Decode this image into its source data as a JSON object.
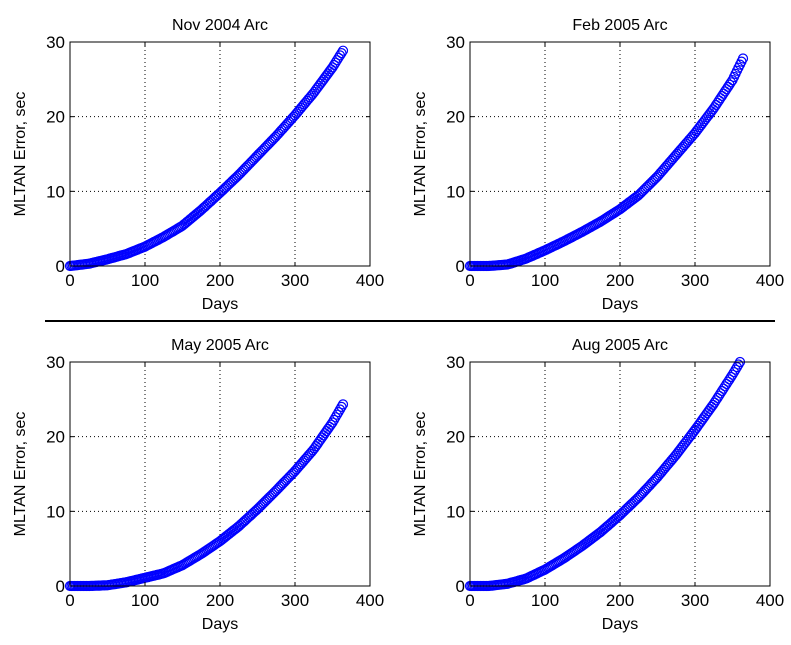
{
  "chart_data": [
    {
      "type": "scatter",
      "title": "Nov 2004 Arc",
      "xlabel": "Days",
      "ylabel": "MLTAN Error, sec",
      "xlim": [
        0,
        400
      ],
      "ylim": [
        0,
        30
      ],
      "xticks": [
        "0",
        "100",
        "200",
        "300",
        "400"
      ],
      "yticks": [
        "0",
        "10",
        "20",
        "30"
      ],
      "grid": true,
      "marker": "circle",
      "color": "#0000ff",
      "x_end": 365,
      "y_end": 29,
      "points": [
        [
          0,
          0
        ],
        [
          25,
          0.3
        ],
        [
          50,
          0.9
        ],
        [
          75,
          1.6
        ],
        [
          100,
          2.6
        ],
        [
          125,
          3.9
        ],
        [
          150,
          5.4
        ],
        [
          175,
          7.5
        ],
        [
          200,
          9.8
        ],
        [
          225,
          12.2
        ],
        [
          250,
          14.8
        ],
        [
          275,
          17.4
        ],
        [
          300,
          20.2
        ],
        [
          325,
          23.2
        ],
        [
          350,
          26.6
        ],
        [
          365,
          29
        ]
      ]
    },
    {
      "type": "scatter",
      "title": "Feb 2005 Arc",
      "xlabel": "Days",
      "ylabel": "MLTAN Error, sec",
      "xlim": [
        0,
        400
      ],
      "ylim": [
        0,
        30
      ],
      "xticks": [
        "0",
        "100",
        "200",
        "300",
        "400"
      ],
      "yticks": [
        "0",
        "10",
        "20",
        "30"
      ],
      "grid": true,
      "marker": "circle",
      "color": "#0000ff",
      "x_end": 365,
      "y_end": 28,
      "points": [
        [
          0,
          0
        ],
        [
          25,
          0
        ],
        [
          50,
          0.2
        ],
        [
          75,
          1
        ],
        [
          100,
          2.1
        ],
        [
          125,
          3.3
        ],
        [
          150,
          4.6
        ],
        [
          175,
          6
        ],
        [
          200,
          7.6
        ],
        [
          225,
          9.5
        ],
        [
          250,
          12
        ],
        [
          275,
          14.9
        ],
        [
          300,
          17.8
        ],
        [
          325,
          21.1
        ],
        [
          350,
          24.9
        ],
        [
          365,
          28
        ]
      ]
    },
    {
      "type": "scatter",
      "title": "May 2005 Arc",
      "xlabel": "Days",
      "ylabel": "MLTAN Error, sec",
      "xlim": [
        0,
        400
      ],
      "ylim": [
        0,
        30
      ],
      "xticks": [
        "0",
        "100",
        "200",
        "300",
        "400"
      ],
      "yticks": [
        "0",
        "10",
        "20",
        "30"
      ],
      "grid": true,
      "marker": "circle",
      "color": "#0000ff",
      "x_end": 365,
      "y_end": 24.5,
      "points": [
        [
          0,
          0
        ],
        [
          25,
          0
        ],
        [
          50,
          0.1
        ],
        [
          75,
          0.5
        ],
        [
          100,
          1.1
        ],
        [
          125,
          1.7
        ],
        [
          150,
          2.8
        ],
        [
          175,
          4.3
        ],
        [
          200,
          6
        ],
        [
          225,
          8
        ],
        [
          250,
          10.3
        ],
        [
          275,
          12.8
        ],
        [
          300,
          15.4
        ],
        [
          325,
          18.3
        ],
        [
          350,
          21.9
        ],
        [
          365,
          24.5
        ]
      ]
    },
    {
      "type": "scatter",
      "title": "Aug 2005 Arc",
      "xlabel": "Days",
      "ylabel": "MLTAN Error, sec",
      "xlim": [
        0,
        400
      ],
      "ylim": [
        0,
        30
      ],
      "xticks": [
        "0",
        "100",
        "200",
        "300",
        "400"
      ],
      "yticks": [
        "0",
        "10",
        "20",
        "30"
      ],
      "grid": true,
      "marker": "circle",
      "color": "#0000ff",
      "x_end": 360,
      "y_end": 30,
      "points": [
        [
          0,
          0
        ],
        [
          25,
          0
        ],
        [
          50,
          0.3
        ],
        [
          75,
          1
        ],
        [
          100,
          2.2
        ],
        [
          125,
          3.7
        ],
        [
          150,
          5.4
        ],
        [
          175,
          7.3
        ],
        [
          200,
          9.5
        ],
        [
          225,
          11.9
        ],
        [
          250,
          14.6
        ],
        [
          275,
          17.6
        ],
        [
          300,
          20.9
        ],
        [
          325,
          24.4
        ],
        [
          350,
          28.3
        ],
        [
          360,
          30
        ]
      ]
    }
  ]
}
